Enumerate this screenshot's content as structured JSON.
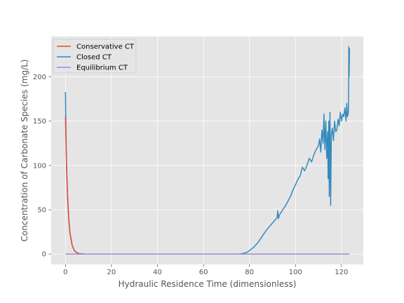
{
  "chart_data": {
    "type": "line",
    "title": "",
    "xlabel": "Hydraulic Residence Time (dimensionless)",
    "ylabel": "Concentration of Carbonate Species (mg/L)",
    "xlim": [
      -6.2,
      129.5
    ],
    "ylim": [
      -11.7,
      245.5
    ],
    "xticks": [
      0,
      20,
      40,
      60,
      80,
      100,
      120
    ],
    "yticks": [
      0,
      50,
      100,
      150,
      200
    ],
    "grid": true,
    "legend_position": "top-left",
    "series": [
      {
        "name": "Conservative CT",
        "color": "#e24a33",
        "x": [
          0,
          0.5,
          1,
          1.5,
          2,
          3,
          4,
          5,
          6,
          8,
          10,
          20,
          40,
          60,
          80,
          100,
          120,
          123.4
        ],
        "y": [
          155,
          96,
          60,
          37,
          23,
          9,
          3.5,
          1.4,
          0.5,
          0.1,
          0,
          0,
          0,
          0,
          0,
          0,
          0,
          0
        ]
      },
      {
        "name": "Closed CT",
        "color": "#348abd",
        "x": [
          0,
          0.2,
          0.5,
          1,
          1.5,
          2,
          3,
          4,
          5,
          6,
          8,
          10,
          20,
          40,
          60,
          75,
          77,
          79,
          80,
          82,
          84,
          86,
          88,
          90,
          92,
          92.3,
          92.6,
          93,
          94,
          96,
          98,
          99,
          100,
          101,
          102,
          103,
          104,
          105,
          106,
          107,
          108,
          109,
          110,
          110.5,
          111,
          111.5,
          112,
          112.4,
          112.8,
          113.2,
          113.6,
          114,
          114.2,
          114.5,
          114.7,
          115,
          115.3,
          115.6,
          116,
          116.5,
          117,
          117.5,
          118,
          118.5,
          119,
          119.5,
          120,
          120.5,
          121,
          121.5,
          122,
          122.3,
          122.6,
          123,
          123.1,
          123.2,
          123.3,
          123.5
        ],
        "y": [
          183,
          140,
          98,
          60,
          37,
          23,
          9,
          3.5,
          1.4,
          0.5,
          0.1,
          0,
          0,
          0,
          0,
          0,
          0.5,
          2,
          4,
          8,
          14,
          22,
          29,
          35,
          41,
          49,
          40,
          44,
          48,
          56,
          66,
          73,
          78,
          84,
          88,
          98,
          94,
          100,
          108,
          104,
          112,
          118,
          122,
          130,
          115,
          140,
          125,
          158,
          118,
          150,
          108,
          138,
          85,
          150,
          65,
          160,
          55,
          135,
          142,
          128,
          150,
          138,
          140,
          152,
          145,
          160,
          150,
          158,
          155,
          165,
          150,
          170,
          155,
          160,
          180,
          234,
          200,
          232
        ]
      },
      {
        "name": "Equilibrium CT",
        "color": "#988ed5",
        "x": [
          0,
          123.4
        ],
        "y": [
          0,
          0
        ]
      }
    ]
  }
}
